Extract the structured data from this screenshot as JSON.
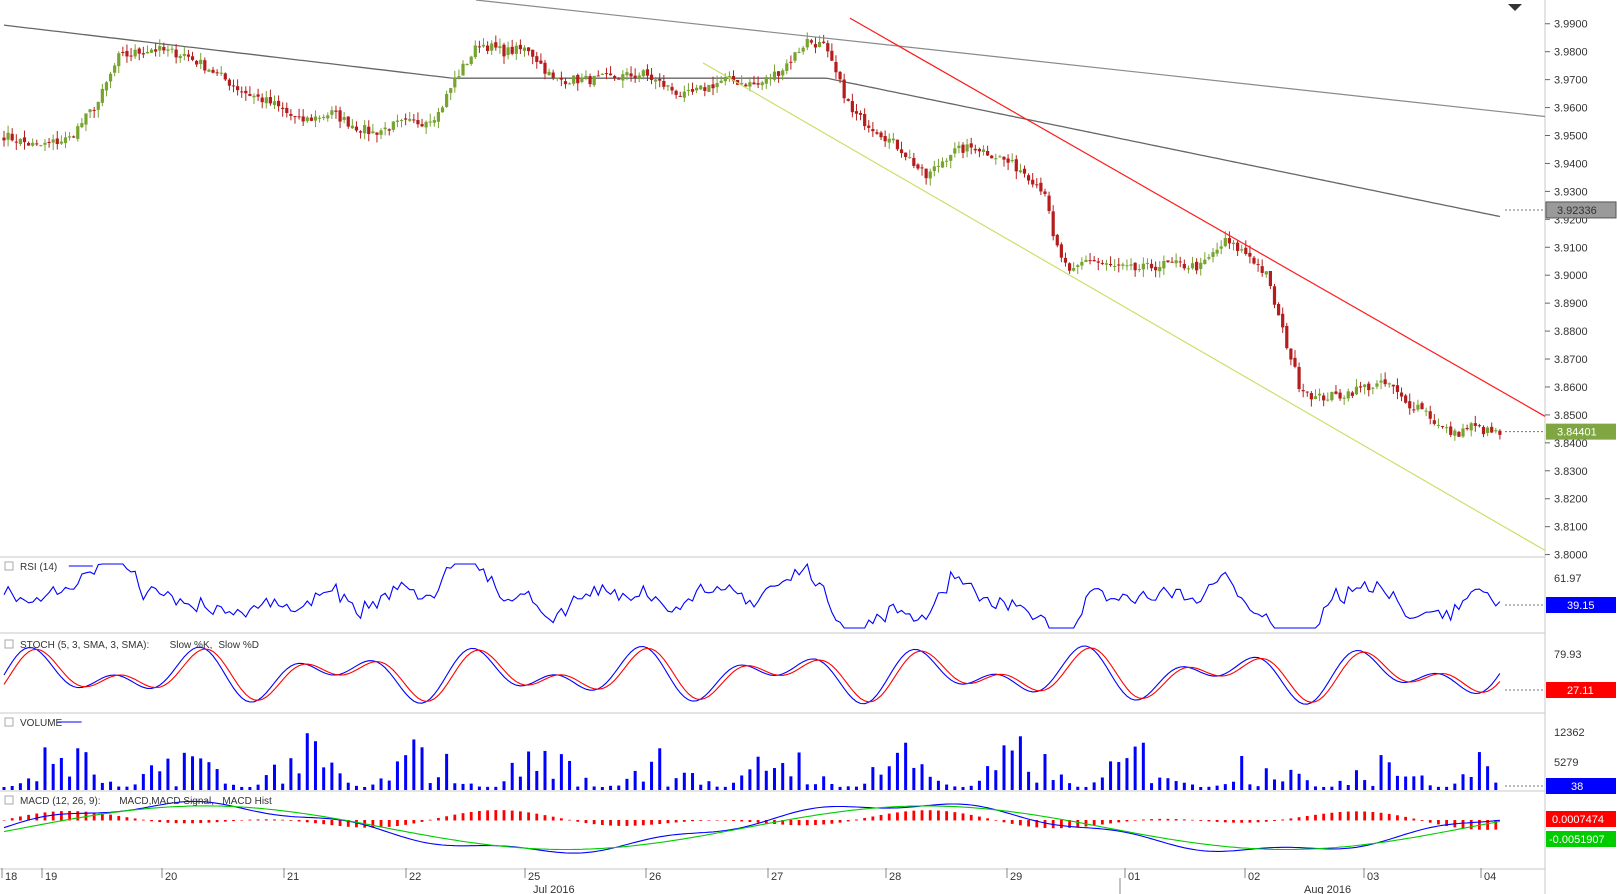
{
  "chart_data": {
    "type": "candlestick",
    "price_axis": {
      "ticks": [
        "3.9900",
        "3.9800",
        "3.9700",
        "3.9600",
        "3.9500",
        "3.9400",
        "3.9300",
        "3.9200",
        "3.9100",
        "3.9000",
        "3.8900",
        "3.8800",
        "3.8700",
        "3.8600",
        "3.8500",
        "3.8400",
        "3.8300",
        "3.8200",
        "3.8100",
        "3.8000"
      ],
      "range": [
        3.7995,
        3.9985
      ]
    },
    "date_axis": {
      "day_labels": [
        "18",
        "19",
        "20",
        "21",
        "22",
        "25",
        "26",
        "27",
        "28",
        "29",
        "01",
        "02",
        "03",
        "04"
      ],
      "month_labels": [
        "Jul 2016",
        "Aug 2016"
      ]
    },
    "moving_average_tag": {
      "value": "3.92336",
      "color": "#9a9a9a"
    },
    "last_price_tag": {
      "value": "3.84401",
      "color": "#7fa640"
    },
    "price_ohlc_anchors": [
      [
        0,
        3.95
      ],
      [
        8,
        3.946
      ],
      [
        16,
        3.949
      ],
      [
        23,
        3.962
      ],
      [
        28,
        3.978
      ],
      [
        36,
        3.981
      ],
      [
        44,
        3.979
      ],
      [
        50,
        3.974
      ],
      [
        58,
        3.966
      ],
      [
        66,
        3.961
      ],
      [
        72,
        3.955
      ],
      [
        80,
        3.958
      ],
      [
        86,
        3.953
      ],
      [
        90,
        3.951
      ],
      [
        96,
        3.954
      ],
      [
        102,
        3.955
      ],
      [
        106,
        3.958
      ],
      [
        110,
        3.97
      ],
      [
        116,
        3.983
      ],
      [
        122,
        3.98
      ],
      [
        128,
        3.981
      ],
      [
        134,
        3.97
      ],
      [
        144,
        3.97
      ],
      [
        156,
        3.972
      ],
      [
        166,
        3.964
      ],
      [
        176,
        3.97
      ],
      [
        184,
        3.968
      ],
      [
        190,
        3.974
      ],
      [
        196,
        3.984
      ],
      [
        200,
        3.982
      ],
      [
        203,
        3.972
      ],
      [
        207,
        3.958
      ],
      [
        213,
        3.952
      ],
      [
        219,
        3.945
      ],
      [
        225,
        3.935
      ],
      [
        231,
        3.944
      ],
      [
        237,
        3.946
      ],
      [
        243,
        3.942
      ],
      [
        249,
        3.937
      ],
      [
        254,
        3.93
      ],
      [
        256,
        3.913
      ],
      [
        260,
        3.9
      ],
      [
        264,
        3.906
      ],
      [
        270,
        3.903
      ],
      [
        276,
        3.902
      ],
      [
        284,
        3.904
      ],
      [
        292,
        3.903
      ],
      [
        298,
        3.912
      ],
      [
        304,
        3.907
      ],
      [
        308,
        3.9
      ],
      [
        312,
        3.88
      ],
      [
        316,
        3.861
      ],
      [
        320,
        3.856
      ],
      [
        326,
        3.857
      ],
      [
        332,
        3.86
      ],
      [
        338,
        3.861
      ],
      [
        342,
        3.854
      ],
      [
        346,
        3.853
      ],
      [
        350,
        3.846
      ],
      [
        354,
        3.843
      ],
      [
        358,
        3.846
      ],
      [
        362,
        3.844
      ]
    ],
    "indicators": [
      {
        "name": "RSI (14)",
        "axis_ticks": [
          "61.97"
        ],
        "last_value": "39.15",
        "line_color": "#0000ff"
      },
      {
        "name": "STOCH (5, 3, SMA, 3, SMA):",
        "series": [
          "Slow %K,",
          "Slow %D"
        ],
        "axis_ticks": [
          "79.93"
        ],
        "last_value": "27.11",
        "colors": [
          "#0000ff",
          "#ff0000"
        ]
      },
      {
        "name": "VOLUME",
        "axis_ticks": [
          "12362",
          "5279"
        ],
        "last_value": "38",
        "line_color": "#0000ff"
      },
      {
        "name": "MACD (12, 26, 9):",
        "series": [
          "MACD,",
          "MACD Signal,",
          "MACD Hist"
        ],
        "values": [
          "0.0007474",
          "-0.0051907"
        ],
        "colors": [
          "#0000ff",
          "#00cc00",
          "#ff0000"
        ]
      }
    ],
    "grid": true
  }
}
